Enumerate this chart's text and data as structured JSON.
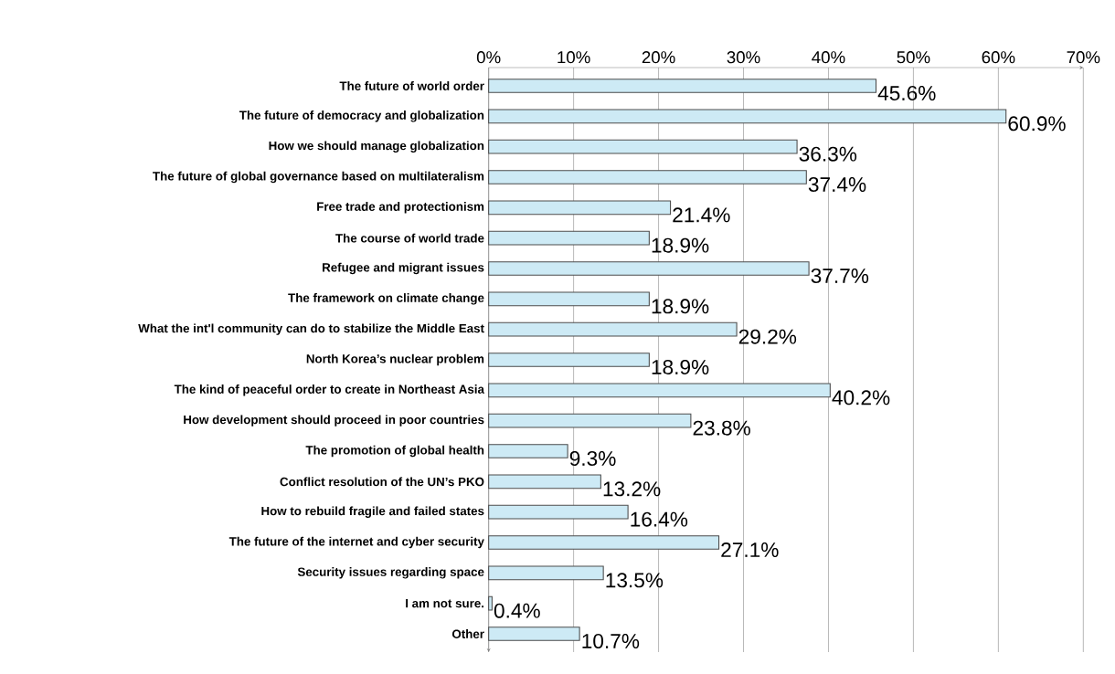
{
  "chart_data": {
    "type": "bar",
    "orientation": "horizontal",
    "categories": [
      "The future of world order",
      "The future of democracy and globalization",
      "How we should manage globalization",
      "The future of global governance based on multilateralism",
      "Free trade and protectionism",
      "The course of world trade",
      "Refugee and migrant issues",
      "The framework on climate change",
      "What the int'l community can do to stabilize the Middle East",
      "North Korea’s nuclear problem",
      "The kind of peaceful order to create in Northeast Asia",
      "How development should proceed in poor countries",
      "The promotion of global health",
      "Conflict resolution of the UN’s PKO",
      "How to rebuild fragile and failed states",
      "The future of the internet and cyber security",
      "Security issues regarding space",
      "I am not sure.",
      "Other"
    ],
    "values": [
      45.6,
      60.9,
      36.3,
      37.4,
      21.4,
      18.9,
      37.7,
      18.9,
      29.2,
      18.9,
      40.2,
      23.8,
      9.3,
      13.2,
      16.4,
      27.1,
      13.5,
      0.4,
      10.7
    ],
    "value_labels": [
      "45.6%",
      "60.9%",
      "36.3%",
      "37.4%",
      "21.4%",
      "18.9%",
      "37.7%",
      "18.9%",
      "29.2%",
      "18.9%",
      "40.2%",
      "23.8%",
      "9.3%",
      "13.2%",
      "16.4%",
      "27.1%",
      "13.5%",
      "0.4%",
      "10.7%"
    ],
    "color": "#cdeaf5",
    "xlim": [
      0,
      70
    ],
    "xticks": [
      {
        "value": 0,
        "label": "0%"
      },
      {
        "value": 10,
        "label": "10%"
      },
      {
        "value": 20,
        "label": "20%"
      },
      {
        "value": 30,
        "label": "30%"
      },
      {
        "value": 40,
        "label": "40%"
      },
      {
        "value": 50,
        "label": "50%"
      },
      {
        "value": 60,
        "label": "60%"
      },
      {
        "value": 70,
        "label": "70%"
      }
    ],
    "grid": "x"
  }
}
